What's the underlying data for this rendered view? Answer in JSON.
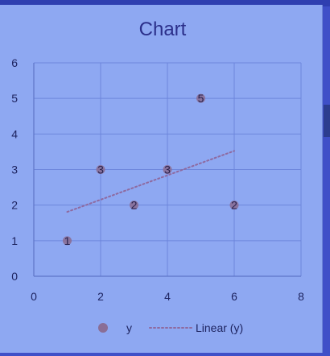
{
  "chart_data": {
    "type": "scatter",
    "title": "Chart",
    "series": [
      {
        "name": "y",
        "x": [
          1,
          2,
          3,
          4,
          5,
          6
        ],
        "y": [
          1,
          3,
          2,
          3,
          5,
          2
        ],
        "data_labels": [
          "1",
          "3",
          "2",
          "3",
          "5",
          "2"
        ],
        "color": "#8a6e96"
      }
    ],
    "trendline": {
      "name": "Linear (y)",
      "type": "linear",
      "color": "#8e6aa0",
      "style": "dotted",
      "x_range": [
        1,
        6
      ]
    },
    "xlim": [
      0,
      8
    ],
    "ylim": [
      0,
      6
    ],
    "xticks": [
      "0",
      "2",
      "4",
      "6",
      "8"
    ],
    "yticks": [
      "0",
      "1",
      "2",
      "3",
      "4",
      "5",
      "6"
    ],
    "grid": true,
    "legend": {
      "position": "bottom",
      "entries": [
        "y",
        "Linear (y)"
      ]
    }
  },
  "colors": {
    "background": "#8ea8f2",
    "grid": "#6d86dc",
    "axis": "#5e75c8"
  }
}
